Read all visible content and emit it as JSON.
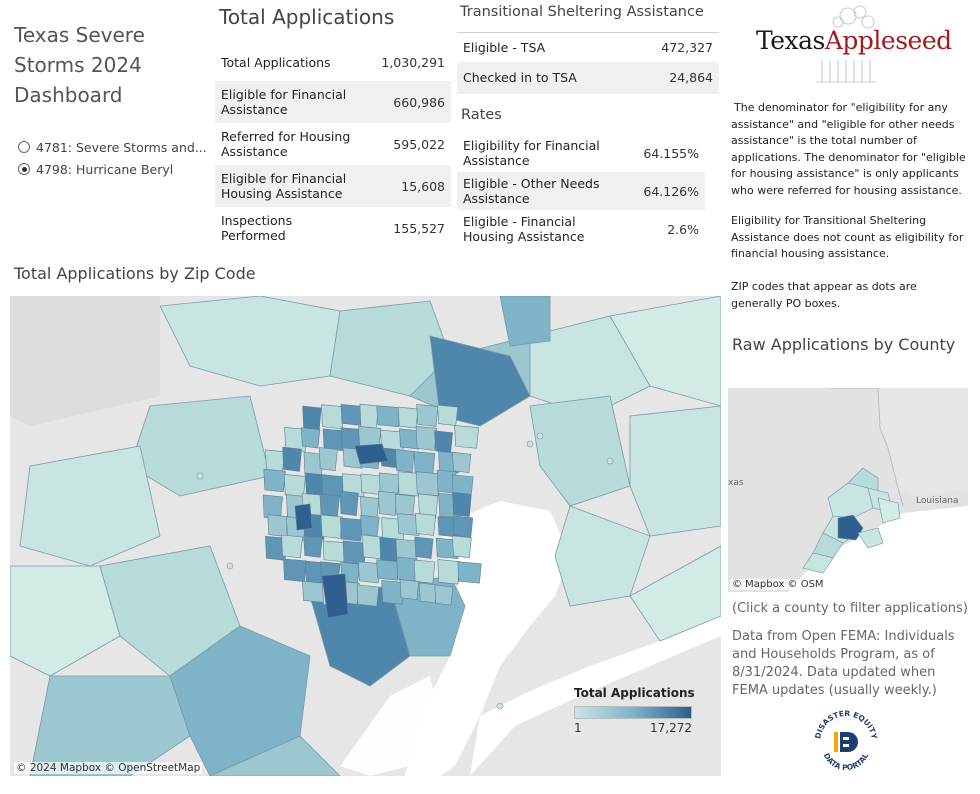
{
  "dashboard": {
    "title": "Texas Severe Storms 2024 Dashboard",
    "disasters": [
      {
        "label": "4781: Severe Storms and...",
        "selected": false
      },
      {
        "label": "4798: Hurricane Beryl",
        "selected": true
      }
    ]
  },
  "total_applications": {
    "heading": "Total Applications",
    "rows": [
      {
        "label": "Total Applications",
        "value": "1,030,291"
      },
      {
        "label": "Eligible for Financial Assistance",
        "value": "660,986"
      },
      {
        "label": "Referred for Housing Assistance",
        "value": "595,022"
      },
      {
        "label": "Eligible for Financial Housing Assistance",
        "value": "15,608"
      },
      {
        "label": "Inspections Performed",
        "value": "155,527"
      }
    ]
  },
  "tsa": {
    "heading": "Transitional Sheltering Assistance",
    "rows": [
      {
        "label": "Eligible - TSA",
        "value": "472,327"
      },
      {
        "label": "Checked in to TSA",
        "value": "24,864"
      }
    ]
  },
  "rates": {
    "heading": "Rates",
    "rows": [
      {
        "label": "Eligibility for Financial Assistance",
        "value": "64.155%"
      },
      {
        "label": "Eligible - Other Needs Assistance",
        "value": "64.126%"
      },
      {
        "label": "Eligible - Financial Housing Assistance",
        "value": "2.6%"
      }
    ]
  },
  "logo": {
    "part1": "Texas",
    "part2": "Appleseed"
  },
  "notes": {
    "denominator": "The denominator for \"eligibility for any assistance\" and \"eligible for other needs assistance\" is the total number of applications. The denominator for \"eligible for housing assistance\" is only applicants who were referred for housing assistance.",
    "tsa": "Eligibility for Transitional Sheltering Assistance does not count as eligibility for financial housing assistance.",
    "zip": "ZIP codes that appear as dots are generally PO boxes."
  },
  "zip_map": {
    "title": "Total  Applications by Zip Code",
    "legend_title": "Total Applications",
    "legend_min": "1",
    "legend_max": "17,272",
    "credit": "© 2024 Mapbox © OpenStreetMap"
  },
  "county_map": {
    "title": "Raw Applications by County",
    "label_texas": "xas",
    "label_louisiana": "Louisiana",
    "credit": "© Mapbox © OSM"
  },
  "footer": {
    "click_hint": "(Click a county to filter applications)",
    "source": "Data from Open FEMA: Individuals and Households Program, as of 8/31/2024. Data updated when FEMA updates (usually weekly.)",
    "portal_top": "DISASTER EQUITY",
    "portal_bottom": "DATA PORTAL"
  },
  "colors": {
    "low": "#c9e5e2",
    "mid": "#7fb3c8",
    "high": "#2f5f8e",
    "water": "#ffffff",
    "land": "#e6e6e6",
    "brand_red": "#a01c22"
  }
}
